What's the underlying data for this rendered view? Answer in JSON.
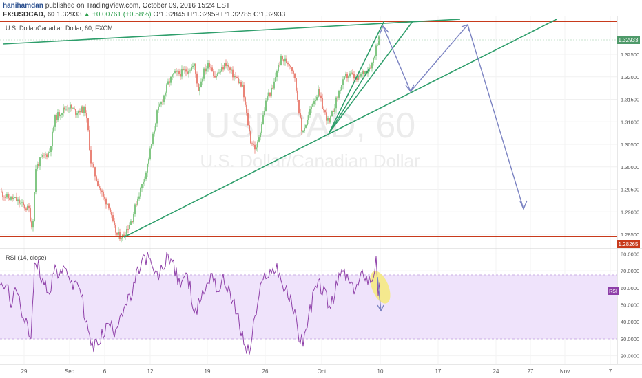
{
  "header": {
    "author": "hanihamdan",
    "published": "published on TradingView.com, October 09, 2016 15:24 EST",
    "symbol": "FX:USDCAD, 60",
    "last": "1.32933",
    "change": "▲ +0.00761 (+0.58%)",
    "ohlc_o": "O:1.32845",
    "ohlc_h": "H:1.32959",
    "ohlc_l": "L:1.32785",
    "ohlc_c": "C:1.32933"
  },
  "price_pane": {
    "label": "U.S. Dollar/Canadian Dollar, 60, FXCM",
    "watermark_symbol": "USDCAD, 60",
    "watermark_name": "U.S. Dollar/Canadian Dollar",
    "last_price_tag": "1.32933",
    "support_tag": "1.28265"
  },
  "rsi_pane": {
    "label": "RSI (14, close)",
    "tag": "RSI"
  },
  "colors": {
    "candle_up": "#4caf50",
    "candle_down": "#e0503f",
    "trend_line": "#2e9e6b",
    "horizontal_level": "#c83a1c",
    "projection_arrow": "#7b83c2",
    "rsi_line": "#8e3fa8",
    "rsi_band": "#efe3fb",
    "highlight": "#f6ea7a"
  },
  "chart_data": [
    {
      "type": "candlestick",
      "title": "U.S. Dollar/Canadian Dollar, 60, FXCM",
      "y_ticks": [
        "1.32500",
        "1.32000",
        "1.31500",
        "1.31000",
        "1.30500",
        "1.30000",
        "1.29500",
        "1.29000",
        "1.28500"
      ],
      "ylim": [
        1.2818,
        1.3334
      ],
      "x_ticks": [
        "29",
        "Sep",
        "6",
        "12",
        "19",
        "26",
        "Oct",
        "10",
        "17",
        "24",
        "27",
        "Nov",
        "7"
      ],
      "price_path": [
        [
          0,
          1.2945
        ],
        [
          10,
          1.2932
        ],
        [
          22,
          1.2928
        ],
        [
          32,
          1.2915
        ],
        [
          42,
          1.2905
        ],
        [
          47,
          1.2858
        ],
        [
          52,
          1.2998
        ],
        [
          60,
          1.3018
        ],
        [
          72,
          1.3035
        ],
        [
          80,
          1.3108
        ],
        [
          90,
          1.3125
        ],
        [
          100,
          1.3135
        ],
        [
          110,
          1.3122
        ],
        [
          118,
          1.3128
        ],
        [
          124,
          1.3125
        ],
        [
          128,
          1.3078
        ],
        [
          132,
          1.3012
        ],
        [
          140,
          1.2972
        ],
        [
          150,
          1.2932
        ],
        [
          158,
          1.2915
        ],
        [
          164,
          1.2872
        ],
        [
          170,
          1.2848
        ],
        [
          178,
          1.2845
        ],
        [
          186,
          1.2868
        ],
        [
          192,
          1.2885
        ],
        [
          198,
          1.2922
        ],
        [
          205,
          1.2955
        ],
        [
          212,
          1.299
        ],
        [
          220,
          1.305
        ],
        [
          228,
          1.312
        ],
        [
          236,
          1.315
        ],
        [
          244,
          1.3185
        ],
        [
          252,
          1.3205
        ],
        [
          262,
          1.3208
        ],
        [
          272,
          1.3215
        ],
        [
          282,
          1.3225
        ],
        [
          288,
          1.3172
        ],
        [
          296,
          1.3212
        ],
        [
          304,
          1.323
        ],
        [
          312,
          1.3202
        ],
        [
          320,
          1.3212
        ],
        [
          328,
          1.323
        ],
        [
          336,
          1.3208
        ],
        [
          344,
          1.3195
        ],
        [
          352,
          1.3175
        ],
        [
          358,
          1.3115
        ],
        [
          364,
          1.3058
        ],
        [
          372,
          1.3038
        ],
        [
          380,
          1.3098
        ],
        [
          388,
          1.3158
        ],
        [
          396,
          1.3172
        ],
        [
          402,
          1.3215
        ],
        [
          408,
          1.324
        ],
        [
          414,
          1.3235
        ],
        [
          420,
          1.323
        ],
        [
          426,
          1.3212
        ],
        [
          432,
          1.3152
        ],
        [
          438,
          1.3078
        ],
        [
          446,
          1.3102
        ],
        [
          454,
          1.3145
        ],
        [
          462,
          1.3165
        ],
        [
          470,
          1.3125
        ],
        [
          478,
          1.3095
        ],
        [
          486,
          1.3138
        ],
        [
          494,
          1.3175
        ],
        [
          502,
          1.32
        ],
        [
          510,
          1.3205
        ],
        [
          518,
          1.3192
        ],
        [
          526,
          1.3208
        ],
        [
          534,
          1.3218
        ],
        [
          540,
          1.323
        ],
        [
          546,
          1.3265
        ],
        [
          550,
          1.3293
        ]
      ]
    },
    {
      "type": "line",
      "title": "RSI (14, close)",
      "y_ticks": [
        "80.0000",
        "70.0000",
        "60.0000",
        "50.0000",
        "40.0000",
        "30.0000",
        "20.0000"
      ],
      "ylim": [
        15,
        83
      ],
      "band": [
        30,
        70
      ],
      "rsi_path": [
        [
          0,
          58
        ],
        [
          8,
          62
        ],
        [
          16,
          52
        ],
        [
          24,
          57
        ],
        [
          32,
          46
        ],
        [
          40,
          40
        ],
        [
          45,
          28
        ],
        [
          50,
          72
        ],
        [
          56,
          73
        ],
        [
          64,
          62
        ],
        [
          72,
          59
        ],
        [
          80,
          72
        ],
        [
          88,
          66
        ],
        [
          96,
          74
        ],
        [
          104,
          60
        ],
        [
          112,
          64
        ],
        [
          118,
          57
        ],
        [
          124,
          42
        ],
        [
          130,
          30
        ],
        [
          136,
          24
        ],
        [
          142,
          29
        ],
        [
          150,
          33
        ],
        [
          158,
          39
        ],
        [
          166,
          35
        ],
        [
          174,
          44
        ],
        [
          182,
          50
        ],
        [
          190,
          54
        ],
        [
          198,
          66
        ],
        [
          206,
          76
        ],
        [
          214,
          78
        ],
        [
          220,
          72
        ],
        [
          228,
          66
        ],
        [
          236,
          71
        ],
        [
          244,
          80
        ],
        [
          252,
          73
        ],
        [
          260,
          62
        ],
        [
          268,
          68
        ],
        [
          276,
          60
        ],
        [
          284,
          44
        ],
        [
          292,
          56
        ],
        [
          300,
          60
        ],
        [
          308,
          70
        ],
        [
          316,
          58
        ],
        [
          324,
          64
        ],
        [
          332,
          60
        ],
        [
          340,
          49
        ],
        [
          348,
          38
        ],
        [
          356,
          25
        ],
        [
          362,
          22
        ],
        [
          370,
          42
        ],
        [
          378,
          58
        ],
        [
          386,
          69
        ],
        [
          394,
          68
        ],
        [
          402,
          73
        ],
        [
          410,
          62
        ],
        [
          418,
          56
        ],
        [
          426,
          48
        ],
        [
          434,
          32
        ],
        [
          440,
          29
        ],
        [
          448,
          42
        ],
        [
          456,
          58
        ],
        [
          464,
          62
        ],
        [
          472,
          56
        ],
        [
          480,
          48
        ],
        [
          488,
          60
        ],
        [
          496,
          70
        ],
        [
          504,
          66
        ],
        [
          512,
          58
        ],
        [
          520,
          62
        ],
        [
          528,
          70
        ],
        [
          534,
          65
        ],
        [
          540,
          66
        ],
        [
          546,
          76
        ],
        [
          549,
          52
        ],
        [
          551,
          63
        ]
      ]
    }
  ]
}
